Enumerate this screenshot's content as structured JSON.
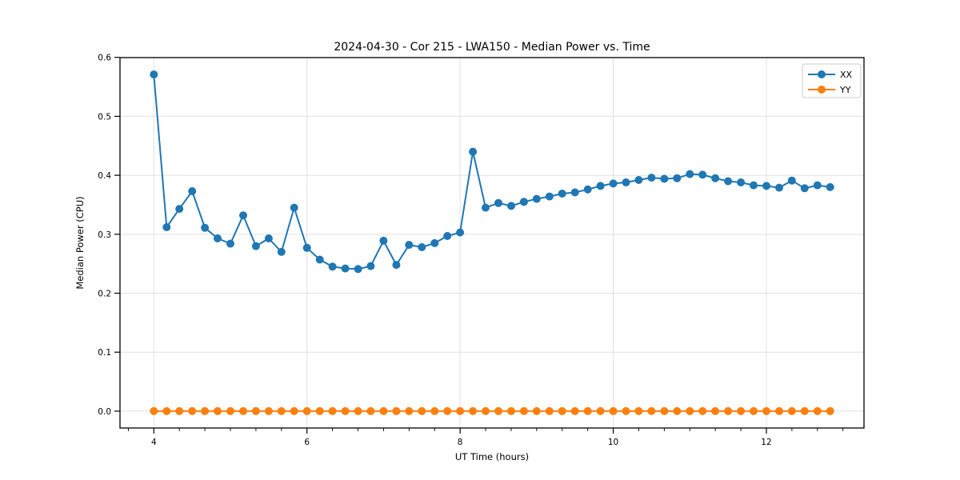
{
  "chart_data": {
    "type": "line",
    "title": "2024-04-30 - Cor 215 - LWA150 - Median Power vs. Time",
    "xlabel": "UT Time (hours)",
    "ylabel": "Median Power (CPU)",
    "x": [
      4.0,
      4.167,
      4.333,
      4.5,
      4.667,
      4.833,
      5.0,
      5.167,
      5.333,
      5.5,
      5.667,
      5.833,
      6.0,
      6.167,
      6.333,
      6.5,
      6.667,
      6.833,
      7.0,
      7.167,
      7.333,
      7.5,
      7.667,
      7.833,
      8.0,
      8.167,
      8.333,
      8.5,
      8.667,
      8.833,
      9.0,
      9.167,
      9.333,
      9.5,
      9.667,
      9.833,
      10.0,
      10.167,
      10.333,
      10.5,
      10.667,
      10.833,
      11.0,
      11.167,
      11.333,
      11.5,
      11.667,
      11.833,
      12.0,
      12.167,
      12.333,
      12.5,
      12.667,
      12.833
    ],
    "series": [
      {
        "name": "XX",
        "color": "#1f77b4",
        "values": [
          0.571,
          0.312,
          0.343,
          0.373,
          0.311,
          0.293,
          0.284,
          0.332,
          0.28,
          0.293,
          0.27,
          0.345,
          0.277,
          0.257,
          0.245,
          0.242,
          0.241,
          0.246,
          0.289,
          0.248,
          0.282,
          0.278,
          0.285,
          0.297,
          0.303,
          0.44,
          0.345,
          0.353,
          0.348,
          0.355,
          0.36,
          0.364,
          0.369,
          0.371,
          0.376,
          0.382,
          0.386,
          0.388,
          0.392,
          0.396,
          0.394,
          0.395,
          0.402,
          0.401,
          0.395,
          0.39,
          0.388,
          0.383,
          0.382,
          0.379,
          0.391,
          0.378,
          0.383,
          0.38
        ]
      },
      {
        "name": "YY",
        "color": "#ff7f0e",
        "values": [
          0,
          0,
          0,
          0,
          0,
          0,
          0,
          0,
          0,
          0,
          0,
          0,
          0,
          0,
          0,
          0,
          0,
          0,
          0,
          0,
          0,
          0,
          0,
          0,
          0,
          0,
          0,
          0,
          0,
          0,
          0,
          0,
          0,
          0,
          0,
          0,
          0,
          0,
          0,
          0,
          0,
          0,
          0,
          0,
          0,
          0,
          0,
          0,
          0,
          0,
          0,
          0,
          0,
          0
        ]
      }
    ],
    "xlim": [
      3.558,
      13.275
    ],
    "ylim": [
      -0.0286,
      0.5996
    ],
    "x_major_ticks": [
      4,
      6,
      8,
      10,
      12
    ],
    "x_minor_tick_step": 0.33333,
    "y_major_ticks": [
      0.0,
      0.1,
      0.2,
      0.3,
      0.4,
      0.5,
      0.6
    ],
    "y_tick_decimals": 1,
    "grid": true,
    "grid_color": "#e1e1e1",
    "spine_color": "#000000",
    "legend_position": "upper right",
    "marker": "circle",
    "marker_radius": 5,
    "line_width": 2
  }
}
